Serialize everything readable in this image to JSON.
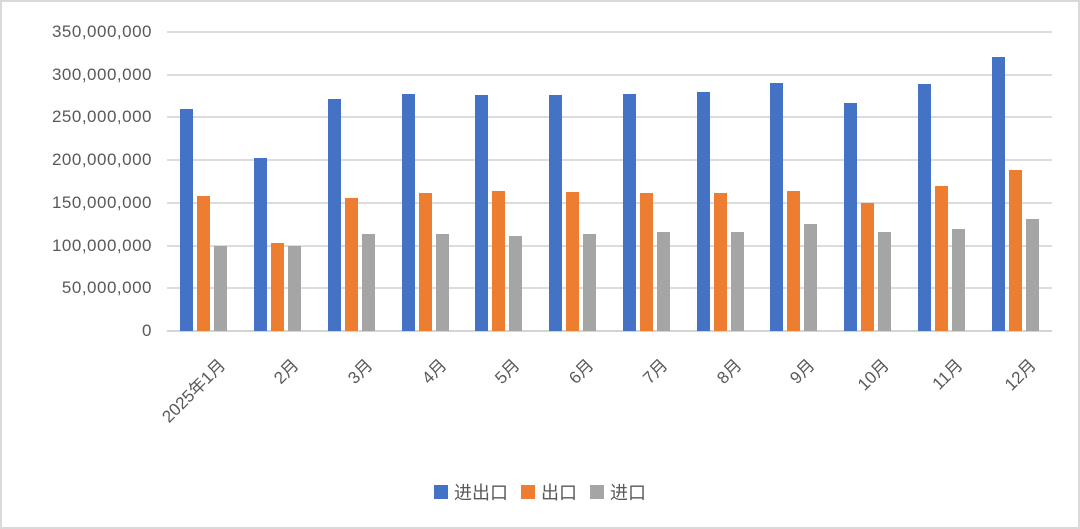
{
  "chart_data": {
    "type": "bar",
    "title": "",
    "xlabel": "",
    "ylabel": "",
    "categories": [
      "2025年1月",
      "2月",
      "3月",
      "4月",
      "5月",
      "6月",
      "7月",
      "8月",
      "9月",
      "10月",
      "11月",
      "12月"
    ],
    "series": [
      {
        "name": "进出口",
        "color": "#4472C4",
        "values": [
          260000000,
          203000000,
          271000000,
          277000000,
          276000000,
          276000000,
          277000000,
          280000000,
          290000000,
          267000000,
          289000000,
          321000000
        ]
      },
      {
        "name": "出口",
        "color": "#ED7D31",
        "values": [
          158000000,
          103000000,
          156000000,
          162000000,
          164000000,
          163000000,
          161000000,
          162000000,
          164000000,
          150000000,
          170000000,
          189000000
        ]
      },
      {
        "name": "进口",
        "color": "#A5A5A5",
        "values": [
          100000000,
          99000000,
          114000000,
          114000000,
          111000000,
          113000000,
          116000000,
          116000000,
          125000000,
          116000000,
          119000000,
          131000000
        ]
      }
    ],
    "ylim": [
      0,
      350000000
    ],
    "ytick_step": 50000000,
    "ytick_labels": [
      "0",
      "50,000,000",
      "100,000,000",
      "150,000,000",
      "200,000,000",
      "250,000,000",
      "300,000,000",
      "350,000,000"
    ],
    "grid": true,
    "legend_position": "bottom",
    "legend_entries": [
      "进出口",
      "出口",
      "进口"
    ]
  },
  "styles": {
    "gridline_color": "#dcdcdc",
    "axis_text_color": "#595959",
    "background_color": "#ffffff",
    "border_color": "#d9d9d9"
  }
}
